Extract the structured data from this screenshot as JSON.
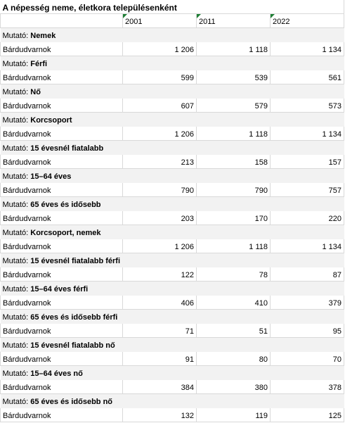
{
  "header": {
    "title": "A népesség neme, életkora településenként",
    "years": [
      "2001",
      "2011",
      "2022"
    ]
  },
  "sections": [
    {
      "prefix": "Mutató:",
      "indicator": "Nemek",
      "rows": [
        {
          "name": "Bárdudvarnok",
          "values": [
            "1 206",
            "1 118",
            "1 134"
          ]
        }
      ]
    },
    {
      "prefix": "Mutató:",
      "indicator": "Férfi",
      "rows": [
        {
          "name": "Bárdudvarnok",
          "values": [
            "599",
            "539",
            "561"
          ]
        }
      ]
    },
    {
      "prefix": "Mutató:",
      "indicator": "Nő",
      "rows": [
        {
          "name": "Bárdudvarnok",
          "values": [
            "607",
            "579",
            "573"
          ]
        }
      ]
    },
    {
      "prefix": "Mutató:",
      "indicator": "Korcsoport",
      "rows": [
        {
          "name": "Bárdudvarnok",
          "values": [
            "1 206",
            "1 118",
            "1 134"
          ]
        }
      ]
    },
    {
      "prefix": "Mutató:",
      "indicator": "15 évesnél fiatalabb",
      "rows": [
        {
          "name": "Bárdudvarnok",
          "values": [
            "213",
            "158",
            "157"
          ]
        }
      ]
    },
    {
      "prefix": "Mutató:",
      "indicator": "15–64 éves",
      "rows": [
        {
          "name": "Bárdudvarnok",
          "values": [
            "790",
            "790",
            "757"
          ]
        }
      ]
    },
    {
      "prefix": "Mutató:",
      "indicator": "65 éves és idősebb",
      "rows": [
        {
          "name": "Bárdudvarnok",
          "values": [
            "203",
            "170",
            "220"
          ]
        }
      ]
    },
    {
      "prefix": "Mutató:",
      "indicator": "Korcsoport, nemek",
      "rows": [
        {
          "name": "Bárdudvarnok",
          "values": [
            "1 206",
            "1 118",
            "1 134"
          ]
        }
      ]
    },
    {
      "prefix": "Mutató:",
      "indicator": "15 évesnél fiatalabb férfi",
      "rows": [
        {
          "name": "Bárdudvarnok",
          "values": [
            "122",
            "78",
            "87"
          ]
        }
      ]
    },
    {
      "prefix": "Mutató:",
      "indicator": "15–64 éves férfi",
      "rows": [
        {
          "name": "Bárdudvarnok",
          "values": [
            "406",
            "410",
            "379"
          ]
        }
      ]
    },
    {
      "prefix": "Mutató:",
      "indicator": "65 éves és idősebb férfi",
      "rows": [
        {
          "name": "Bárdudvarnok",
          "values": [
            "71",
            "51",
            "95"
          ]
        }
      ]
    },
    {
      "prefix": "Mutató:",
      "indicator": "15 évesnél fiatalabb nő",
      "rows": [
        {
          "name": "Bárdudvarnok",
          "values": [
            "91",
            "80",
            "70"
          ]
        }
      ]
    },
    {
      "prefix": "Mutató:",
      "indicator": "15–64 éves nő",
      "rows": [
        {
          "name": "Bárdudvarnok",
          "values": [
            "384",
            "380",
            "378"
          ]
        }
      ]
    },
    {
      "prefix": "Mutató:",
      "indicator": "65 éves és idősebb nő",
      "rows": [
        {
          "name": "Bárdudvarnok",
          "values": [
            "132",
            "119",
            "125"
          ]
        }
      ]
    }
  ]
}
